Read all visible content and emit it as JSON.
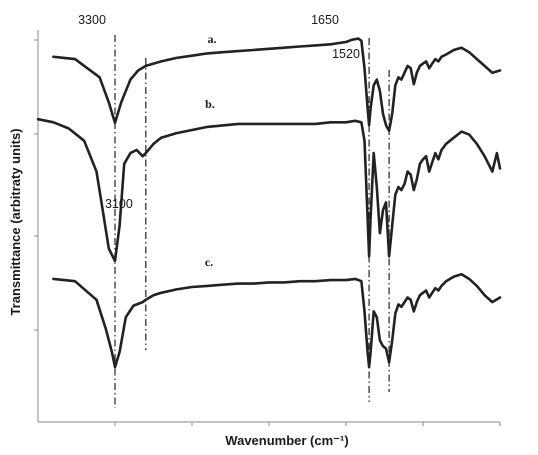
{
  "chart_data": {
    "type": "line",
    "xlabel": "Wavenumber (cm⁻¹)",
    "ylabel": "Transmittance (arbitraty units)",
    "grid": false,
    "annotations": [
      "3300",
      "3100",
      "1650",
      "1520"
    ],
    "marker_lines": [
      3300,
      3100,
      1650,
      1520
    ],
    "xlim": [
      3800,
      800
    ],
    "series": [
      {
        "name": "a.",
        "x": [
          3700,
          3560,
          3400,
          3340,
          3300,
          3260,
          3200,
          3150,
          3100,
          3050,
          3000,
          2900,
          2800,
          2700,
          2600,
          2500,
          2400,
          2300,
          2200,
          2100,
          2000,
          1900,
          1800,
          1760,
          1720,
          1700,
          1680,
          1660,
          1650,
          1640,
          1620,
          1600,
          1580,
          1560,
          1540,
          1520,
          1500,
          1480,
          1460,
          1440,
          1420,
          1400,
          1380,
          1360,
          1340,
          1320,
          1300,
          1280,
          1260,
          1240,
          1220,
          1200,
          1180,
          1150,
          1100,
          1050,
          1000,
          950,
          900,
          850,
          800
        ],
        "y": [
          0.8,
          0.78,
          0.62,
          0.4,
          0.22,
          0.4,
          0.6,
          0.68,
          0.72,
          0.74,
          0.76,
          0.79,
          0.81,
          0.83,
          0.84,
          0.85,
          0.86,
          0.87,
          0.88,
          0.89,
          0.9,
          0.91,
          0.93,
          0.95,
          0.96,
          0.94,
          0.7,
          0.35,
          0.2,
          0.35,
          0.55,
          0.6,
          0.5,
          0.3,
          0.2,
          0.15,
          0.3,
          0.55,
          0.62,
          0.6,
          0.66,
          0.72,
          0.7,
          0.56,
          0.66,
          0.72,
          0.74,
          0.76,
          0.7,
          0.74,
          0.78,
          0.76,
          0.8,
          0.82,
          0.86,
          0.88,
          0.84,
          0.78,
          0.72,
          0.66,
          0.68
        ]
      },
      {
        "name": "b.",
        "x": [
          3800,
          3700,
          3600,
          3500,
          3420,
          3380,
          3340,
          3300,
          3270,
          3240,
          3200,
          3160,
          3120,
          3100,
          3050,
          3000,
          2900,
          2800,
          2700,
          2600,
          2500,
          2400,
          2300,
          2200,
          2100,
          2000,
          1900,
          1800,
          1740,
          1700,
          1680,
          1660,
          1650,
          1640,
          1620,
          1600,
          1580,
          1560,
          1540,
          1520,
          1500,
          1480,
          1460,
          1440,
          1420,
          1400,
          1380,
          1360,
          1340,
          1320,
          1300,
          1280,
          1260,
          1240,
          1220,
          1200,
          1180,
          1150,
          1100,
          1050,
          1000,
          950,
          900,
          850,
          820,
          800
        ],
        "y": [
          0.94,
          0.92,
          0.88,
          0.8,
          0.6,
          0.35,
          0.1,
          0.02,
          0.25,
          0.65,
          0.72,
          0.74,
          0.7,
          0.72,
          0.78,
          0.82,
          0.85,
          0.87,
          0.89,
          0.9,
          0.91,
          0.91,
          0.91,
          0.91,
          0.91,
          0.91,
          0.92,
          0.92,
          0.93,
          0.92,
          0.8,
          0.3,
          0.05,
          0.3,
          0.72,
          0.5,
          0.2,
          0.35,
          0.4,
          0.05,
          0.25,
          0.45,
          0.5,
          0.48,
          0.52,
          0.6,
          0.58,
          0.48,
          0.55,
          0.65,
          0.68,
          0.7,
          0.6,
          0.66,
          0.72,
          0.68,
          0.74,
          0.78,
          0.82,
          0.86,
          0.84,
          0.78,
          0.7,
          0.6,
          0.72,
          0.62
        ]
      },
      {
        "name": "c.",
        "x": [
          3700,
          3560,
          3420,
          3360,
          3320,
          3300,
          3270,
          3230,
          3180,
          3120,
          3100,
          3050,
          3000,
          2900,
          2800,
          2700,
          2600,
          2500,
          2400,
          2300,
          2200,
          2100,
          2000,
          1900,
          1800,
          1740,
          1700,
          1680,
          1660,
          1650,
          1640,
          1620,
          1600,
          1580,
          1560,
          1540,
          1520,
          1500,
          1480,
          1460,
          1440,
          1420,
          1400,
          1380,
          1360,
          1340,
          1320,
          1300,
          1280,
          1260,
          1240,
          1220,
          1200,
          1180,
          1150,
          1100,
          1050,
          1000,
          950,
          900,
          850,
          800
        ],
        "y": [
          0.88,
          0.86,
          0.7,
          0.45,
          0.25,
          0.12,
          0.25,
          0.55,
          0.65,
          0.68,
          0.7,
          0.74,
          0.76,
          0.79,
          0.81,
          0.82,
          0.83,
          0.84,
          0.84,
          0.85,
          0.85,
          0.86,
          0.86,
          0.87,
          0.87,
          0.88,
          0.86,
          0.6,
          0.25,
          0.12,
          0.25,
          0.6,
          0.55,
          0.35,
          0.3,
          0.28,
          0.16,
          0.35,
          0.58,
          0.66,
          0.64,
          0.68,
          0.72,
          0.7,
          0.6,
          0.68,
          0.74,
          0.76,
          0.78,
          0.72,
          0.76,
          0.8,
          0.78,
          0.82,
          0.86,
          0.9,
          0.92,
          0.88,
          0.82,
          0.74,
          0.68,
          0.72
        ]
      }
    ]
  }
}
